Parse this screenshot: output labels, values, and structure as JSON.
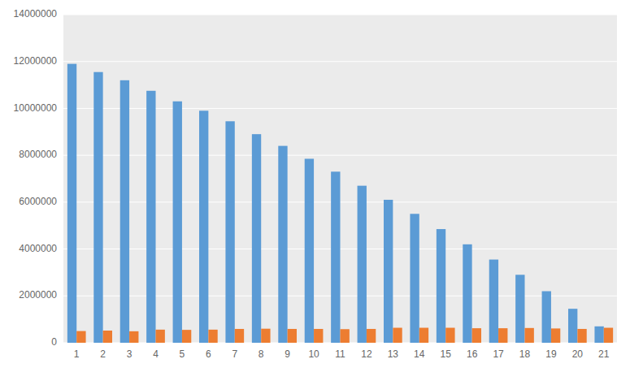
{
  "chart_data": {
    "type": "bar",
    "categories": [
      1,
      2,
      3,
      4,
      5,
      6,
      7,
      8,
      9,
      10,
      11,
      12,
      13,
      14,
      15,
      16,
      17,
      18,
      19,
      20,
      21
    ],
    "series": [
      {
        "color": "#5B9BD5",
        "values": [
          11900000,
          11550000,
          11200000,
          10750000,
          10300000,
          9900000,
          9450000,
          8900000,
          8400000,
          7850000,
          7300000,
          6700000,
          6100000,
          5500000,
          4850000,
          4200000,
          3550000,
          2900000,
          2200000,
          1450000,
          700000
        ]
      },
      {
        "color": "#ED7D31",
        "values": [
          500000,
          520000,
          490000,
          560000,
          550000,
          560000,
          590000,
          600000,
          590000,
          590000,
          580000,
          590000,
          640000,
          640000,
          640000,
          620000,
          620000,
          630000,
          610000,
          590000,
          640000
        ]
      }
    ],
    "ylim": [
      0,
      14000000
    ],
    "yticks": [
      0,
      2000000,
      4000000,
      6000000,
      8000000,
      10000000,
      12000000,
      14000000
    ],
    "grid": true
  }
}
